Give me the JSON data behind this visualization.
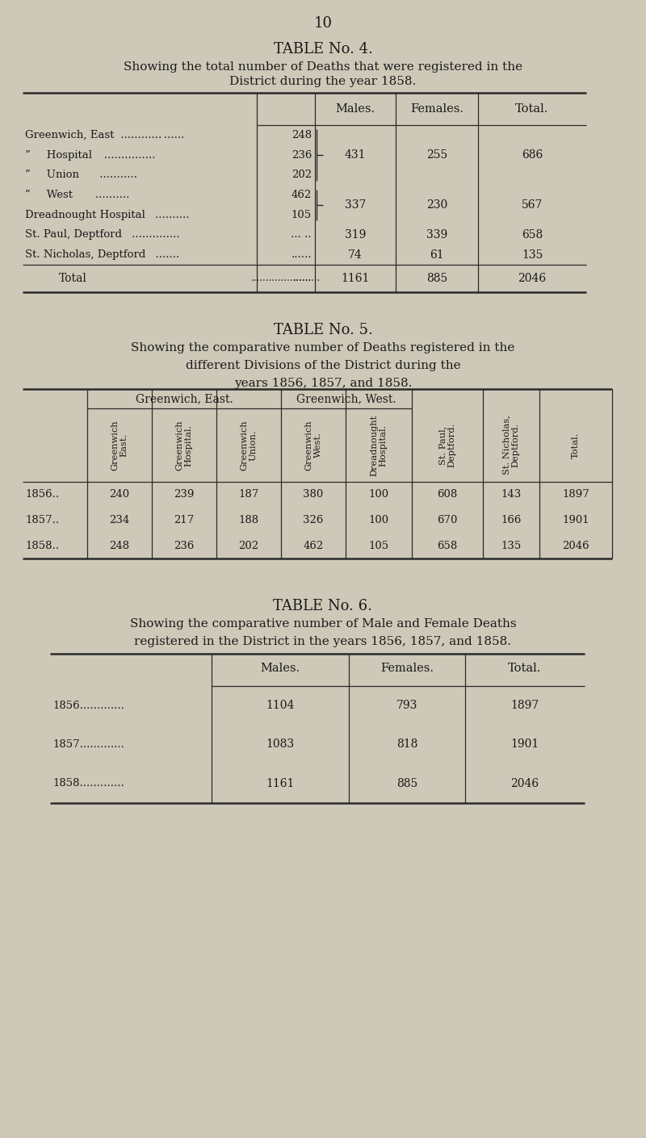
{
  "page_number": "10",
  "bg_color": "#cec8b8",
  "text_color": "#1a1a1a",
  "table4": {
    "title": "TABLE No. 4.",
    "subtitle_line1": "Showing the total number of Deaths that were registered in the",
    "subtitle_line2": "District during the year 1858.",
    "col_headers": [
      "Males.",
      "Females.",
      "Total."
    ],
    "row_labels": [
      "Greenwich, East",
      "”      Hospital",
      "”      Union",
      "”      West",
      "Dreadnought Hospital",
      "St. Paul, Deptford",
      "St. Nicholas, Deptford"
    ],
    "sub_vals": [
      "248",
      "236",
      "202",
      "462",
      "105",
      "... ..",
      "......"
    ],
    "group1": {
      "males": "431",
      "females": "255",
      "total": "686"
    },
    "group2": {
      "males": "337",
      "females": "230",
      "total": "567"
    },
    "st_paul": {
      "males": "319",
      "females": "339",
      "total": "658"
    },
    "st_nicholas": {
      "males": "74",
      "females": "61",
      "total": "135"
    },
    "total_row": {
      "males": "1161",
      "females": "885",
      "total": "2046"
    }
  },
  "table5": {
    "title": "TABLE No. 5.",
    "subtitle_line1": "Showing the comparative number of Deaths registered in the",
    "subtitle_line2": "different Divisions of the District during the",
    "subtitle_line3": "years 1856, 1857, and 1858.",
    "group_header1": "Greenwich, East.",
    "group_header2": "Greenwich, West.",
    "col_headers": [
      "Greenwich\nEast.",
      "Greenwich\nHospital.",
      "Greenwich\nUnion.",
      "Greenwich\nWest.",
      "Dreadnought\nHospital.",
      "St. Paul,\nDeptford.",
      "St. Nicholas,\nDeptford.",
      "Total."
    ],
    "years": [
      "1856..",
      "1857..",
      "1858.."
    ],
    "data": [
      [
        240,
        239,
        187,
        380,
        100,
        608,
        143,
        1897
      ],
      [
        234,
        217,
        188,
        326,
        100,
        670,
        166,
        1901
      ],
      [
        248,
        236,
        202,
        462,
        105,
        658,
        135,
        2046
      ]
    ]
  },
  "table6": {
    "title": "TABLE No. 6.",
    "subtitle_line1": "Showing the comparative number of Male and Female Deaths",
    "subtitle_line2": "registered in the District in the years 1856, 1857, and 1858.",
    "col_headers": [
      "Males.",
      "Females.",
      "Total."
    ],
    "years": [
      "1856.............",
      "1857.............",
      "1858............."
    ],
    "males": [
      1104,
      1083,
      1161
    ],
    "females": [
      793,
      818,
      885
    ],
    "totals": [
      1897,
      1901,
      2046
    ]
  }
}
